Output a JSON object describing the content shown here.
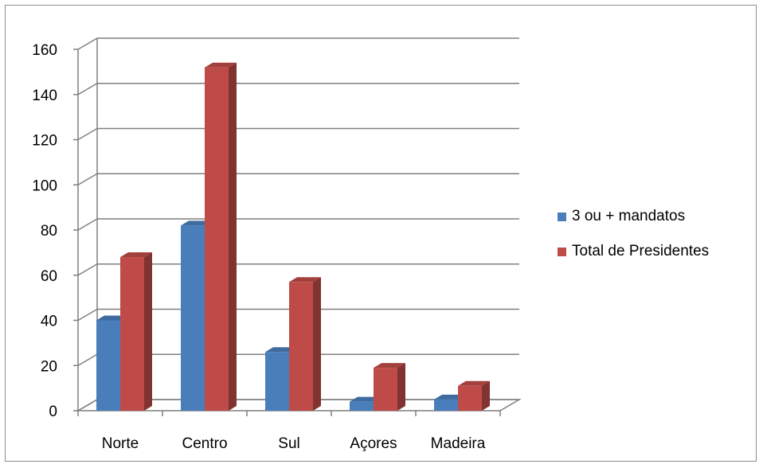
{
  "chart_data": {
    "type": "bar",
    "style": "3d-clustered-column",
    "categories": [
      "Norte",
      "Centro",
      "Sul",
      "Açores",
      "Madeira"
    ],
    "series": [
      {
        "name": "3 ou + mandatos",
        "color": "#4a7ebb",
        "values": [
          40,
          82,
          26,
          4,
          5
        ]
      },
      {
        "name": "Total de Presidentes",
        "color": "#be4b48",
        "values": [
          68,
          152,
          57,
          19,
          11
        ]
      }
    ],
    "ylim": [
      0,
      160
    ],
    "yticks": [
      0,
      20,
      40,
      60,
      80,
      100,
      120,
      140,
      160
    ],
    "grid": true,
    "legend_position": "right"
  }
}
